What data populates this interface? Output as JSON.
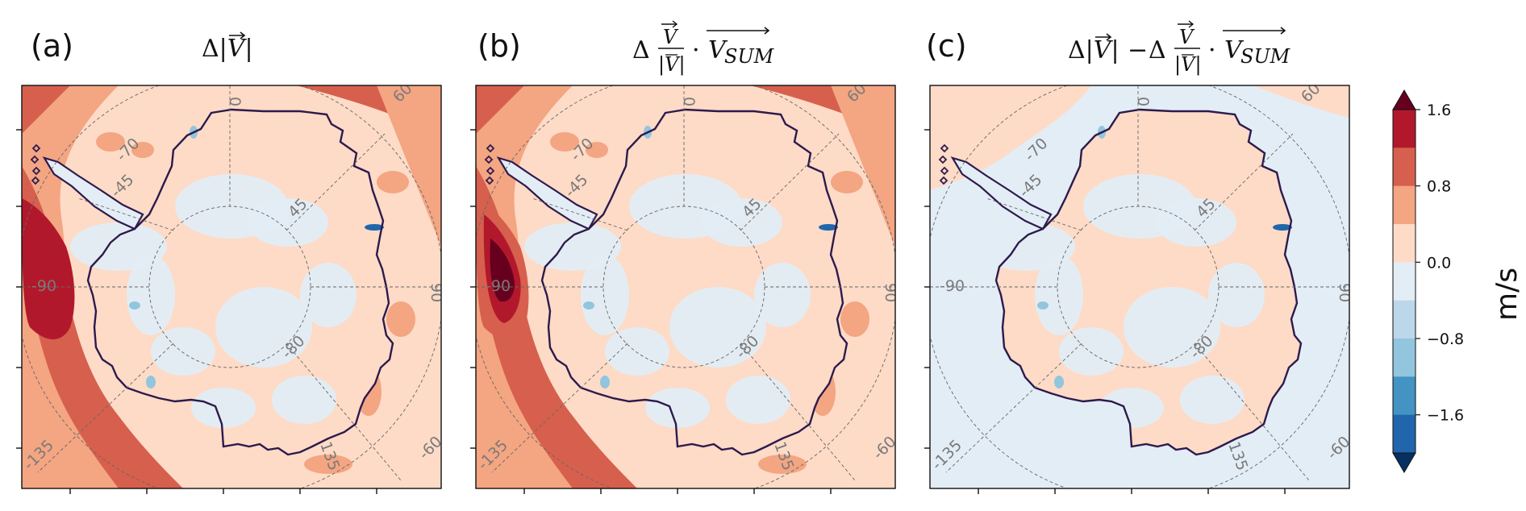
{
  "chart_data": [
    {
      "type": "heatmap",
      "panel_label": "(a)",
      "title": "Δ|V⃗|",
      "meridian_labels": [
        "0",
        "60",
        "90",
        "-60",
        "-90",
        "-135",
        "135",
        "-45",
        "45"
      ],
      "latitude_labels": [
        "-70",
        "-80"
      ],
      "peak_anomaly": 1.5,
      "color_note": "positive anomalies over ocean, strongest near -90"
    },
    {
      "type": "heatmap",
      "panel_label": "(b)",
      "title": "Δ (V⃗/|V⃗|) · V⃗_SUM",
      "meridian_labels": [
        "0",
        "60",
        "90",
        "-60",
        "-90",
        "-135",
        "135",
        "-45",
        "45"
      ],
      "latitude_labels": [
        "-70",
        "-80"
      ],
      "peak_anomaly": 1.8,
      "color_note": "similar to (a)"
    },
    {
      "type": "heatmap",
      "panel_label": "(c)",
      "title": "Δ|V⃗| − Δ (V⃗/|V⃗|) · V⃗_SUM",
      "meridian_labels": [
        "0",
        "60",
        "90",
        "-60",
        "-90",
        "-135",
        "135",
        "-45",
        "45"
      ],
      "latitude_labels": [
        "-70",
        "-80"
      ],
      "peak_anomaly": 0.4,
      "color_note": "near-zero residual"
    }
  ],
  "colorbar": {
    "unit": "m/s",
    "ticks": [
      "1.6",
      "0.8",
      "0.0",
      "−0.8",
      "−1.6"
    ],
    "levels": [
      2.0,
      1.6,
      1.2,
      0.8,
      0.4,
      0.0,
      -0.4,
      -0.8,
      -1.2,
      -1.6,
      -2.0
    ],
    "colors": [
      "#67001f",
      "#b2182b",
      "#d6604d",
      "#f4a582",
      "#fddbc7",
      "#e3edf6",
      "#bcd7ea",
      "#92c5de",
      "#4393c3",
      "#2166ac",
      "#053061"
    ],
    "extend": "both"
  },
  "title_parts": {
    "delta": "Δ",
    "v": "V",
    "dot": "·",
    "vsum": "V",
    "sum": "SUM",
    "minus": "−"
  }
}
